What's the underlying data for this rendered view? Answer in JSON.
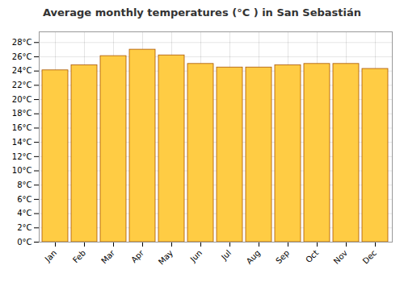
{
  "chart_data": {
    "type": "bar",
    "title": "Average monthly temperatures (°C ) in San Sebastián",
    "categories": [
      "Jan",
      "Feb",
      "Mar",
      "Apr",
      "May",
      "Jun",
      "Jul",
      "Aug",
      "Sep",
      "Oct",
      "Nov",
      "Dec"
    ],
    "values": [
      24.1,
      24.8,
      26.1,
      27.0,
      26.2,
      25.0,
      24.5,
      24.5,
      24.8,
      25.0,
      25.0,
      24.3
    ],
    "color": "#FFCC44",
    "ylim": [
      0,
      29.5
    ],
    "yticks": [
      {
        "value": 0,
        "label": "0°C"
      },
      {
        "value": 2,
        "label": "2°C"
      },
      {
        "value": 4,
        "label": "4°C"
      },
      {
        "value": 6,
        "label": "6°C"
      },
      {
        "value": 8,
        "label": "8°C"
      },
      {
        "value": 10,
        "label": "10°C"
      },
      {
        "value": 12,
        "label": "12°C"
      },
      {
        "value": 14,
        "label": "14°C"
      },
      {
        "value": 16,
        "label": "16°C"
      },
      {
        "value": 18,
        "label": "18°C"
      },
      {
        "value": 20,
        "label": "20°C"
      },
      {
        "value": 22,
        "label": "22°C"
      },
      {
        "value": 24,
        "label": "24°C"
      },
      {
        "value": 26,
        "label": "26°C"
      },
      {
        "value": 28,
        "label": "28°C"
      }
    ],
    "grid": true
  }
}
